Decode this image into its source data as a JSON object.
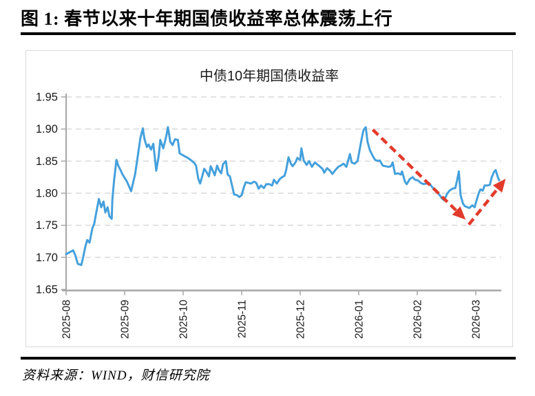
{
  "header": {
    "title": "图 1:  春节以来十年期国债收益率总体震荡上行"
  },
  "footer": {
    "source": "资料来源：WIND，财信研究院"
  },
  "colors": {
    "line": "#44a0dc",
    "arrow": "#e23b2b",
    "grid": "#d9d9d9",
    "axis": "#a6a6a6",
    "tick_label": "#1a1a1a",
    "border": "#d8d8d8",
    "title": "#000000"
  },
  "chart_data": {
    "type": "line",
    "title": "中债10年期国债收益率",
    "xlabel": "",
    "ylabel": "",
    "ylim": [
      1.65,
      1.95
    ],
    "y_ticks": [
      1.65,
      1.7,
      1.75,
      1.8,
      1.85,
      1.9,
      1.95
    ],
    "x_tick_labels": [
      "2025-08",
      "2025-09",
      "2025-10",
      "2025-11",
      "2025-12",
      "2026-01",
      "2026-02",
      "2026-03"
    ],
    "x_unit": "months since 2025-08-01",
    "xlim_months": [
      0,
      7.44
    ],
    "grid": "horizontal-dashed",
    "legend_position": "none",
    "series": [
      {
        "name": "中债10年期国债收益率",
        "points": [
          [
            0.0,
            1.705
          ],
          [
            0.06,
            1.708
          ],
          [
            0.12,
            1.711
          ],
          [
            0.15,
            1.705
          ],
          [
            0.2,
            1.69
          ],
          [
            0.26,
            1.688
          ],
          [
            0.29,
            1.7
          ],
          [
            0.33,
            1.717
          ],
          [
            0.36,
            1.727
          ],
          [
            0.4,
            1.723
          ],
          [
            0.45,
            1.746
          ],
          [
            0.48,
            1.752
          ],
          [
            0.52,
            1.772
          ],
          [
            0.56,
            1.791
          ],
          [
            0.6,
            1.778
          ],
          [
            0.64,
            1.787
          ],
          [
            0.67,
            1.77
          ],
          [
            0.71,
            1.778
          ],
          [
            0.74,
            1.764
          ],
          [
            0.78,
            1.76
          ],
          [
            0.79,
            1.79
          ],
          [
            0.82,
            1.82
          ],
          [
            0.86,
            1.852
          ],
          [
            0.89,
            1.843
          ],
          [
            0.93,
            1.836
          ],
          [
            0.96,
            1.83
          ],
          [
            1.0,
            1.824
          ],
          [
            1.04,
            1.818
          ],
          [
            1.07,
            1.812
          ],
          [
            1.11,
            1.803
          ],
          [
            1.18,
            1.83
          ],
          [
            1.22,
            1.855
          ],
          [
            1.27,
            1.886
          ],
          [
            1.31,
            1.901
          ],
          [
            1.34,
            1.884
          ],
          [
            1.38,
            1.872
          ],
          [
            1.41,
            1.876
          ],
          [
            1.45,
            1.868
          ],
          [
            1.49,
            1.877
          ],
          [
            1.54,
            1.835
          ],
          [
            1.58,
            1.856
          ],
          [
            1.61,
            1.883
          ],
          [
            1.66,
            1.87
          ],
          [
            1.71,
            1.888
          ],
          [
            1.74,
            1.903
          ],
          [
            1.78,
            1.88
          ],
          [
            1.82,
            1.875
          ],
          [
            1.86,
            1.884
          ],
          [
            1.91,
            1.883
          ],
          [
            1.94,
            1.862
          ],
          [
            1.98,
            1.86
          ],
          [
            2.02,
            1.858
          ],
          [
            2.08,
            1.855
          ],
          [
            2.14,
            1.851
          ],
          [
            2.19,
            1.847
          ],
          [
            2.22,
            1.843
          ],
          [
            2.26,
            1.822
          ],
          [
            2.29,
            1.815
          ],
          [
            2.33,
            1.828
          ],
          [
            2.36,
            1.838
          ],
          [
            2.4,
            1.833
          ],
          [
            2.44,
            1.826
          ],
          [
            2.47,
            1.842
          ],
          [
            2.51,
            1.834
          ],
          [
            2.54,
            1.828
          ],
          [
            2.58,
            1.843
          ],
          [
            2.61,
            1.836
          ],
          [
            2.65,
            1.831
          ],
          [
            2.68,
            1.845
          ],
          [
            2.73,
            1.85
          ],
          [
            2.76,
            1.829
          ],
          [
            2.8,
            1.826
          ],
          [
            2.84,
            1.81
          ],
          [
            2.87,
            1.798
          ],
          [
            2.92,
            1.797
          ],
          [
            2.96,
            1.794
          ],
          [
            3.0,
            1.797
          ],
          [
            3.04,
            1.81
          ],
          [
            3.07,
            1.817
          ],
          [
            3.12,
            1.816
          ],
          [
            3.16,
            1.815
          ],
          [
            3.21,
            1.818
          ],
          [
            3.25,
            1.816
          ],
          [
            3.29,
            1.807
          ],
          [
            3.33,
            1.812
          ],
          [
            3.38,
            1.808
          ],
          [
            3.42,
            1.814
          ],
          [
            3.47,
            1.814
          ],
          [
            3.52,
            1.812
          ],
          [
            3.55,
            1.821
          ],
          [
            3.6,
            1.815
          ],
          [
            3.65,
            1.822
          ],
          [
            3.69,
            1.825
          ],
          [
            3.73,
            1.827
          ],
          [
            3.76,
            1.836
          ],
          [
            3.8,
            1.856
          ],
          [
            3.84,
            1.846
          ],
          [
            3.87,
            1.842
          ],
          [
            3.92,
            1.848
          ],
          [
            3.95,
            1.855
          ],
          [
            4.0,
            1.852
          ],
          [
            4.02,
            1.87
          ],
          [
            4.06,
            1.851
          ],
          [
            4.11,
            1.844
          ],
          [
            4.15,
            1.85
          ],
          [
            4.2,
            1.841
          ],
          [
            4.25,
            1.848
          ],
          [
            4.29,
            1.845
          ],
          [
            4.33,
            1.842
          ],
          [
            4.38,
            1.838
          ],
          [
            4.41,
            1.832
          ],
          [
            4.46,
            1.839
          ],
          [
            4.51,
            1.835
          ],
          [
            4.55,
            1.83
          ],
          [
            4.6,
            1.836
          ],
          [
            4.65,
            1.841
          ],
          [
            4.69,
            1.843
          ],
          [
            4.74,
            1.846
          ],
          [
            4.79,
            1.841
          ],
          [
            4.85,
            1.861
          ],
          [
            4.88,
            1.848
          ],
          [
            4.93,
            1.846
          ],
          [
            4.98,
            1.85
          ],
          [
            5.04,
            1.88
          ],
          [
            5.08,
            1.898
          ],
          [
            5.12,
            1.903
          ],
          [
            5.15,
            1.88
          ],
          [
            5.19,
            1.867
          ],
          [
            5.24,
            1.858
          ],
          [
            5.28,
            1.852
          ],
          [
            5.33,
            1.85
          ],
          [
            5.36,
            1.851
          ],
          [
            5.41,
            1.843
          ],
          [
            5.46,
            1.842
          ],
          [
            5.51,
            1.841
          ],
          [
            5.55,
            1.842
          ],
          [
            5.58,
            1.848
          ],
          [
            5.62,
            1.83
          ],
          [
            5.67,
            1.831
          ],
          [
            5.72,
            1.829
          ],
          [
            5.74,
            1.834
          ],
          [
            5.79,
            1.818
          ],
          [
            5.82,
            1.814
          ],
          [
            5.87,
            1.822
          ],
          [
            5.92,
            1.825
          ],
          [
            5.96,
            1.821
          ],
          [
            6.01,
            1.82
          ],
          [
            6.06,
            1.816
          ],
          [
            6.11,
            1.814
          ],
          [
            6.15,
            1.815
          ],
          [
            6.2,
            1.816
          ],
          [
            6.25,
            1.81
          ],
          [
            6.29,
            1.806
          ],
          [
            6.34,
            1.802
          ],
          [
            6.39,
            1.796
          ],
          [
            6.42,
            1.792
          ],
          [
            6.46,
            1.789
          ],
          [
            6.51,
            1.799
          ],
          [
            6.55,
            1.804
          ],
          [
            6.6,
            1.807
          ],
          [
            6.65,
            1.808
          ],
          [
            6.68,
            1.82
          ],
          [
            6.71,
            1.834
          ],
          [
            6.74,
            1.797
          ],
          [
            6.78,
            1.784
          ],
          [
            6.81,
            1.78
          ],
          [
            6.86,
            1.778
          ],
          [
            6.89,
            1.777
          ],
          [
            6.94,
            1.781
          ],
          [
            6.98,
            1.778
          ],
          [
            7.01,
            1.788
          ],
          [
            7.05,
            1.8
          ],
          [
            7.08,
            1.806
          ],
          [
            7.12,
            1.804
          ],
          [
            7.15,
            1.812
          ],
          [
            7.2,
            1.812
          ],
          [
            7.24,
            1.813
          ],
          [
            7.27,
            1.824
          ],
          [
            7.31,
            1.833
          ],
          [
            7.34,
            1.836
          ],
          [
            7.38,
            1.824
          ],
          [
            7.4,
            1.82
          ]
        ]
      }
    ],
    "annotations": [
      {
        "type": "arrow",
        "style": "dashed",
        "direction": "down",
        "from": [
          5.24,
          1.899
        ],
        "to": [
          6.7,
          1.77
        ]
      },
      {
        "type": "arrow",
        "style": "dashed",
        "direction": "up",
        "from": [
          6.88,
          1.751
        ],
        "to": [
          7.4,
          1.81
        ]
      }
    ]
  }
}
